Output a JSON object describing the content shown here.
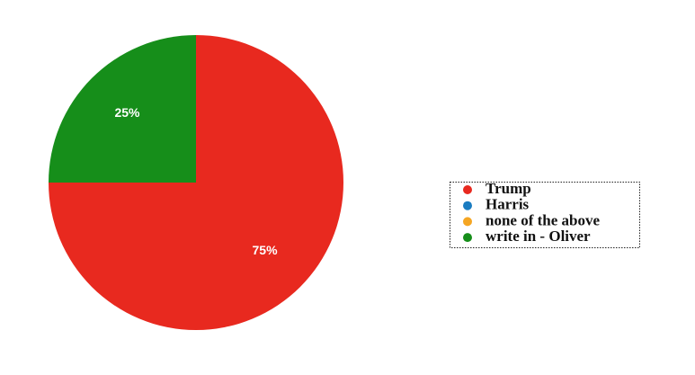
{
  "chart_data": {
    "type": "pie",
    "categories": [
      "Trump",
      "Harris",
      "none of the above",
      "write in - Oliver"
    ],
    "values": [
      75,
      0,
      0,
      25
    ],
    "value_labels": [
      "75%",
      null,
      null,
      "25%"
    ],
    "colors": [
      "#e8291f",
      "#1a7cc1",
      "#f5a623",
      "#168e1a"
    ],
    "legend": "right"
  }
}
